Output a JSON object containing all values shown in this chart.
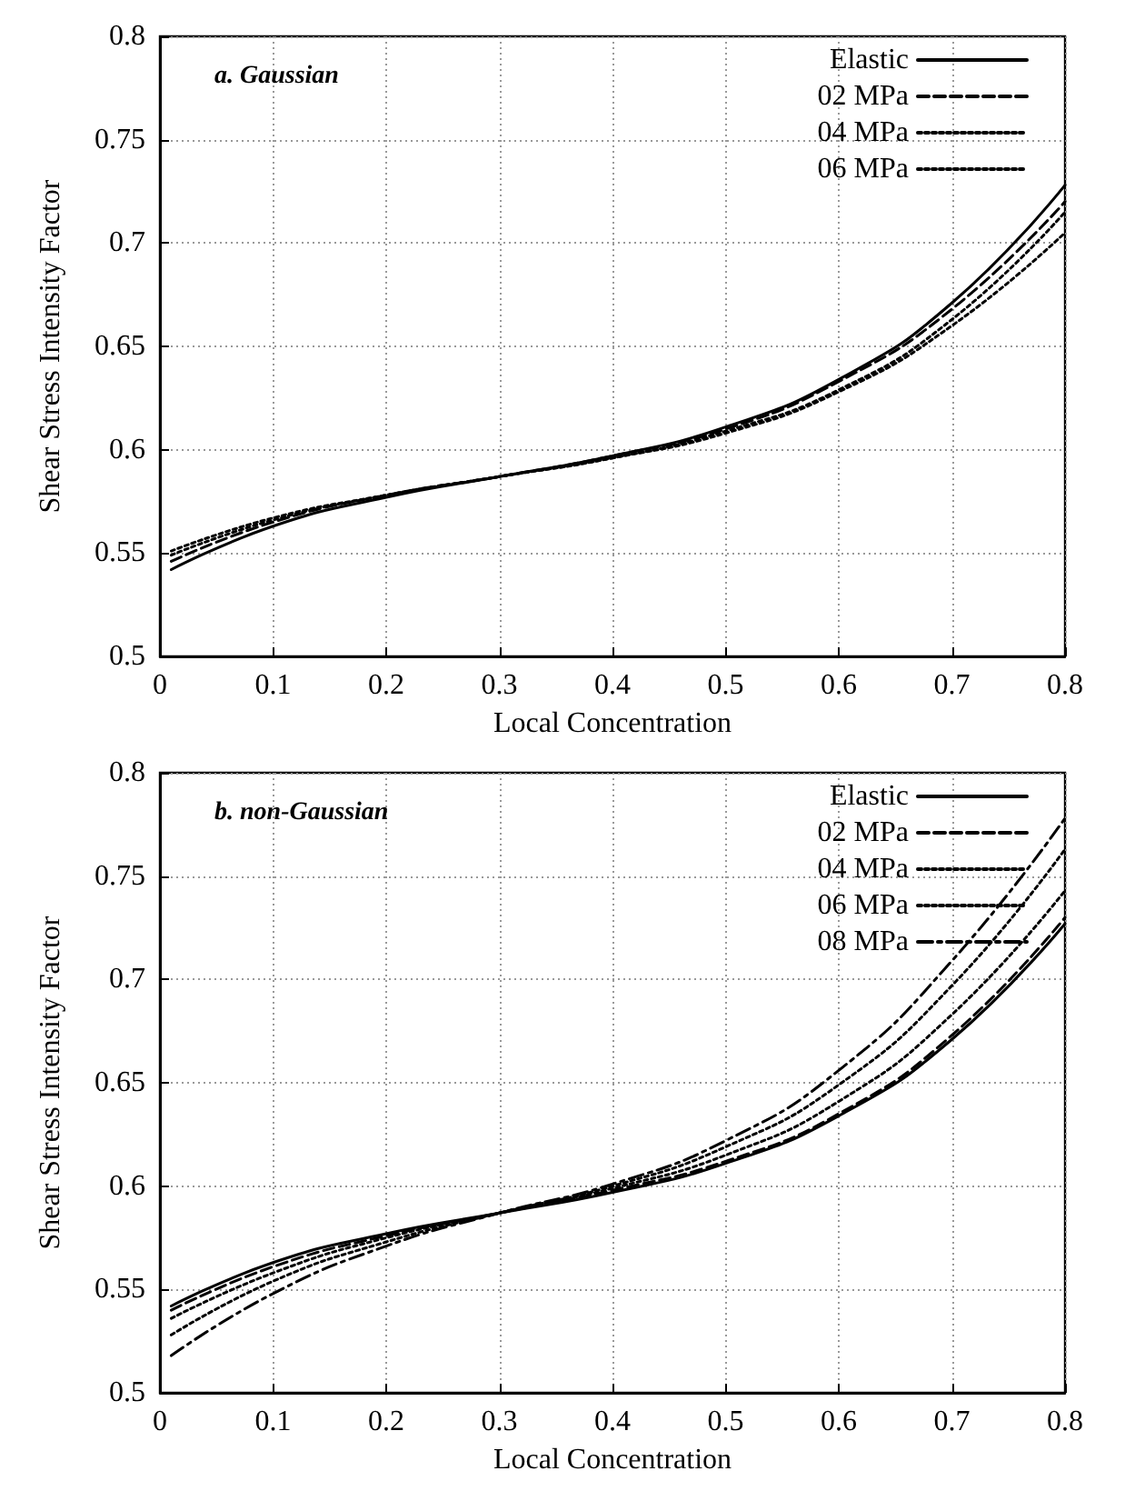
{
  "chart_data": [
    {
      "type": "line",
      "title": "a. Gaussian",
      "xlabel": "Local Concentration",
      "ylabel": "Shear Stress Intensity Factor",
      "xlim": [
        0,
        0.8
      ],
      "xticks": [
        0,
        0.1,
        0.2,
        0.3,
        0.4,
        0.5,
        0.6,
        0.7,
        0.8
      ],
      "ylim": [
        0.5,
        0.8
      ],
      "yticks": [
        0.5,
        0.55,
        0.6,
        0.65,
        0.7,
        0.75,
        0.8
      ],
      "grid": true,
      "legend": "top right",
      "marker": "none",
      "x": [
        0.01,
        0.1,
        0.2,
        0.3,
        0.4,
        0.5,
        0.6,
        0.7,
        0.8
      ],
      "series": [
        {
          "name": "Elastic",
          "color": "#000000",
          "line_style": "solid",
          "values": [
            0.542,
            0.563,
            0.577,
            0.587,
            0.597,
            0.611,
            0.634,
            0.671,
            0.728
          ]
        },
        {
          "name": "02 MPa",
          "color": "#000000",
          "line_style": "dashed",
          "values": [
            0.546,
            0.565,
            0.578,
            0.587,
            0.597,
            0.61,
            0.633,
            0.668,
            0.72
          ]
        },
        {
          "name": "04 MPa",
          "color": "#000000",
          "line_style": "dotted",
          "values": [
            0.551,
            0.567,
            0.578,
            0.587,
            0.596,
            0.608,
            0.628,
            0.66,
            0.705
          ]
        },
        {
          "name": "06 MPa",
          "color": "#000000",
          "line_style": "dotted",
          "values": [
            0.549,
            0.566,
            0.578,
            0.587,
            0.596,
            0.609,
            0.629,
            0.663,
            0.715
          ]
        }
      ]
    },
    {
      "type": "line",
      "title": "b. non-Gaussian",
      "xlabel": "Local Concentration",
      "ylabel": "Shear Stress Intensity Factor",
      "xlim": [
        0,
        0.8
      ],
      "xticks": [
        0,
        0.1,
        0.2,
        0.3,
        0.4,
        0.5,
        0.6,
        0.7,
        0.8
      ],
      "ylim": [
        0.5,
        0.8
      ],
      "yticks": [
        0.5,
        0.55,
        0.6,
        0.65,
        0.7,
        0.75,
        0.8
      ],
      "grid": true,
      "legend": "top right",
      "marker": "none",
      "x": [
        0.01,
        0.1,
        0.2,
        0.3,
        0.4,
        0.5,
        0.6,
        0.7,
        0.8
      ],
      "series": [
        {
          "name": "Elastic",
          "color": "#000000",
          "line_style": "solid",
          "values": [
            0.542,
            0.563,
            0.577,
            0.587,
            0.597,
            0.611,
            0.634,
            0.671,
            0.727
          ]
        },
        {
          "name": "02 MPa",
          "color": "#000000",
          "line_style": "dashed",
          "values": [
            0.54,
            0.561,
            0.576,
            0.587,
            0.598,
            0.612,
            0.635,
            0.673,
            0.73
          ]
        },
        {
          "name": "04 MPa",
          "color": "#000000",
          "line_style": "dotted",
          "values": [
            0.536,
            0.558,
            0.575,
            0.587,
            0.599,
            0.615,
            0.641,
            0.683,
            0.743
          ]
        },
        {
          "name": "06 MPa",
          "color": "#000000",
          "line_style": "dotted",
          "values": [
            0.528,
            0.554,
            0.573,
            0.587,
            0.6,
            0.619,
            0.649,
            0.697,
            0.763
          ]
        },
        {
          "name": "08 MPa",
          "color": "#000000",
          "line_style": "dashdot",
          "values": [
            0.518,
            0.548,
            0.571,
            0.587,
            0.601,
            0.622,
            0.656,
            0.709,
            0.778
          ]
        }
      ]
    }
  ]
}
